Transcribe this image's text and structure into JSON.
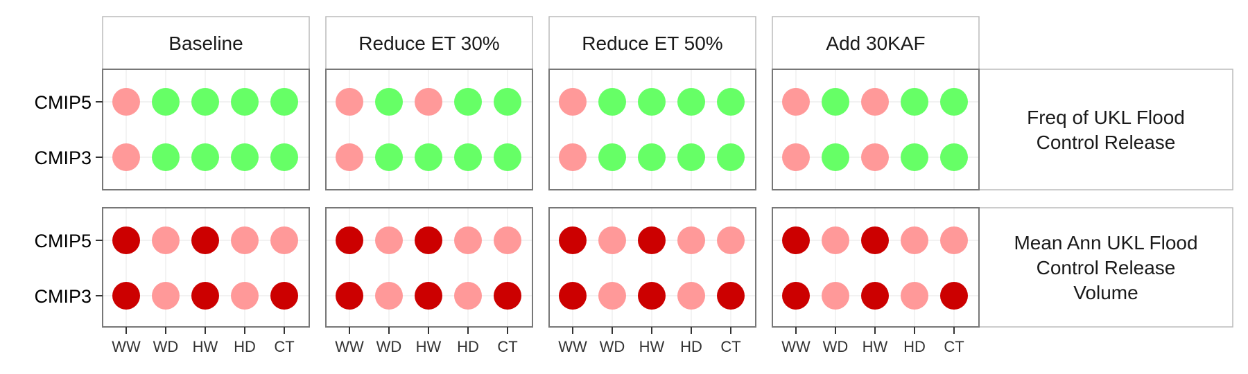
{
  "chart_data": {
    "type": "scatter",
    "column_facets": [
      "Baseline",
      "Reduce ET 30%",
      "Reduce ET 50%",
      "Add 30KAF"
    ],
    "row_facets": [
      [
        "Freq of UKL Flood",
        "Control Release"
      ],
      [
        "Mean Ann UKL Flood",
        "Control Release",
        "Volume"
      ]
    ],
    "x_categories": [
      "WW",
      "WD",
      "HW",
      "HD",
      "CT"
    ],
    "y_categories": [
      "CMIP5",
      "CMIP3"
    ],
    "colors": {
      "green": "#66ff66",
      "light_red": "#ff9999",
      "dark_red": "#cc0000",
      "panel_border": "#777777",
      "grid": "#ebebeb",
      "strip_border": "#bbbbbb"
    },
    "grid": true,
    "legend": "none",
    "cells": [
      [
        {
          "CMIP5": [
            "light_red",
            "green",
            "green",
            "green",
            "green"
          ],
          "CMIP3": [
            "light_red",
            "green",
            "green",
            "green",
            "green"
          ]
        },
        {
          "CMIP5": [
            "light_red",
            "green",
            "light_red",
            "green",
            "green"
          ],
          "CMIP3": [
            "light_red",
            "green",
            "green",
            "green",
            "green"
          ]
        },
        {
          "CMIP5": [
            "light_red",
            "green",
            "green",
            "green",
            "green"
          ],
          "CMIP3": [
            "light_red",
            "green",
            "green",
            "green",
            "green"
          ]
        },
        {
          "CMIP5": [
            "light_red",
            "green",
            "light_red",
            "green",
            "green"
          ],
          "CMIP3": [
            "light_red",
            "green",
            "light_red",
            "green",
            "green"
          ]
        }
      ],
      [
        {
          "CMIP5": [
            "dark_red",
            "light_red",
            "dark_red",
            "light_red",
            "light_red"
          ],
          "CMIP3": [
            "dark_red",
            "light_red",
            "dark_red",
            "light_red",
            "dark_red"
          ]
        },
        {
          "CMIP5": [
            "dark_red",
            "light_red",
            "dark_red",
            "light_red",
            "light_red"
          ],
          "CMIP3": [
            "dark_red",
            "light_red",
            "dark_red",
            "light_red",
            "dark_red"
          ]
        },
        {
          "CMIP5": [
            "dark_red",
            "light_red",
            "dark_red",
            "light_red",
            "light_red"
          ],
          "CMIP3": [
            "dark_red",
            "light_red",
            "dark_red",
            "light_red",
            "dark_red"
          ]
        },
        {
          "CMIP5": [
            "dark_red",
            "light_red",
            "dark_red",
            "light_red",
            "light_red"
          ],
          "CMIP3": [
            "dark_red",
            "light_red",
            "dark_red",
            "light_red",
            "dark_red"
          ]
        }
      ]
    ]
  }
}
